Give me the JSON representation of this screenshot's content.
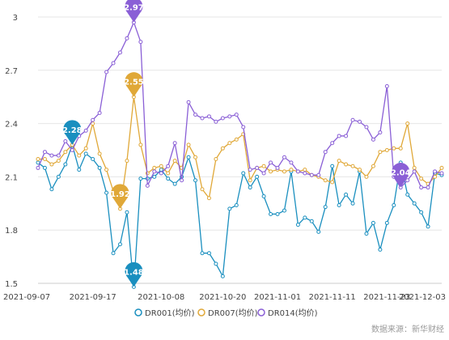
{
  "chart_data": {
    "type": "line",
    "x": [
      "2021-09-07",
      "2021-09-08",
      "2021-09-09",
      "2021-09-10",
      "2021-09-13",
      "2021-09-14",
      "2021-09-15",
      "2021-09-16",
      "2021-09-17",
      "2021-09-18",
      "2021-09-22",
      "2021-09-23",
      "2021-09-24",
      "2021-09-26",
      "2021-09-27",
      "2021-09-28",
      "2021-09-29",
      "2021-09-30",
      "2021-10-08",
      "2021-10-09",
      "2021-10-11",
      "2021-10-12",
      "2021-10-13",
      "2021-10-14",
      "2021-10-15",
      "2021-10-18",
      "2021-10-19",
      "2021-10-20",
      "2021-10-21",
      "2021-10-22",
      "2021-10-25",
      "2021-10-26",
      "2021-10-27",
      "2021-10-28",
      "2021-10-29",
      "2021-11-01",
      "2021-11-02",
      "2021-11-03",
      "2021-11-04",
      "2021-11-05",
      "2021-11-08",
      "2021-11-09",
      "2021-11-10",
      "2021-11-11",
      "2021-11-12",
      "2021-11-15",
      "2021-11-16",
      "2021-11-17",
      "2021-11-18",
      "2021-11-19",
      "2021-11-22",
      "2021-11-23",
      "2021-11-24",
      "2021-11-25",
      "2021-11-26",
      "2021-11-29",
      "2021-11-30",
      "2021-12-01",
      "2021-12-02",
      "2021-12-03"
    ],
    "x_ticks": [
      "2021-09-07",
      "2021-09-17",
      "2021-10-08",
      "2021-10-20",
      "2021-11-01",
      "2021-11-11",
      "2021-11-23",
      "2021-12-03"
    ],
    "y_ticks": [
      "1.5",
      "1.8",
      "2.1",
      "2.4",
      "2.7",
      "3"
    ],
    "ylim": [
      1.5,
      3.0
    ],
    "grid": true,
    "legend_position": "bottom",
    "series": [
      {
        "name": "DR001(均价)",
        "color": "#1a8fbf",
        "values": [
          2.18,
          2.15,
          2.03,
          2.1,
          2.17,
          2.28,
          2.14,
          2.23,
          2.2,
          2.15,
          2.01,
          1.67,
          1.72,
          1.9,
          1.48,
          2.09,
          2.09,
          2.1,
          2.14,
          2.09,
          2.06,
          2.1,
          2.21,
          2.08,
          1.67,
          1.67,
          1.61,
          1.54,
          1.92,
          1.94,
          2.12,
          2.04,
          2.1,
          1.99,
          1.89,
          1.89,
          1.91,
          2.13,
          1.83,
          1.87,
          1.85,
          1.79,
          1.93,
          2.16,
          1.94,
          2.0,
          1.95,
          2.13,
          1.78,
          1.84,
          1.69,
          1.84,
          1.94,
          2.18,
          2.0,
          1.95,
          1.9,
          1.82,
          2.12,
          2.11
        ]
      },
      {
        "name": "DR007(均价)",
        "color": "#e0a838",
        "values": [
          2.2,
          2.2,
          2.17,
          2.19,
          2.24,
          2.28,
          2.22,
          2.26,
          2.4,
          2.23,
          2.14,
          2.02,
          1.92,
          2.19,
          2.55,
          2.28,
          2.12,
          2.15,
          2.16,
          2.12,
          2.19,
          2.15,
          2.28,
          2.21,
          2.03,
          1.98,
          2.2,
          2.26,
          2.29,
          2.31,
          2.34,
          2.08,
          2.15,
          2.16,
          2.13,
          2.14,
          2.13,
          2.14,
          2.13,
          2.14,
          2.11,
          2.1,
          2.08,
          2.07,
          2.19,
          2.17,
          2.16,
          2.14,
          2.1,
          2.16,
          2.24,
          2.25,
          2.26,
          2.26,
          2.4,
          2.15,
          2.09,
          2.06,
          2.1,
          2.15
        ]
      },
      {
        "name": "DR014(均价)",
        "color": "#8a5fd6",
        "values": [
          2.15,
          2.24,
          2.22,
          2.22,
          2.3,
          2.25,
          2.33,
          2.36,
          2.42,
          2.46,
          2.69,
          2.74,
          2.8,
          2.88,
          2.97,
          2.86,
          2.05,
          2.13,
          2.12,
          2.16,
          2.29,
          2.08,
          2.52,
          2.45,
          2.43,
          2.44,
          2.41,
          2.43,
          2.44,
          2.45,
          2.38,
          2.14,
          2.15,
          2.12,
          2.18,
          2.15,
          2.21,
          2.18,
          2.13,
          2.12,
          2.11,
          2.11,
          2.24,
          2.29,
          2.33,
          2.33,
          2.42,
          2.41,
          2.38,
          2.31,
          2.35,
          2.61,
          2.1,
          2.04,
          2.08,
          2.13,
          2.04,
          2.04,
          2.13,
          2.12
        ]
      }
    ],
    "annotations": [
      {
        "series": 0,
        "index": 5,
        "label": "2.28"
      },
      {
        "series": 0,
        "index": 14,
        "label": "1.48"
      },
      {
        "series": 1,
        "index": 12,
        "label": "1.92"
      },
      {
        "series": 1,
        "index": 14,
        "label": "2.55"
      },
      {
        "series": 2,
        "index": 14,
        "label": "2.97"
      },
      {
        "series": 2,
        "index": 53,
        "label": "2.04"
      }
    ],
    "source": "数据来源：新华财经"
  }
}
